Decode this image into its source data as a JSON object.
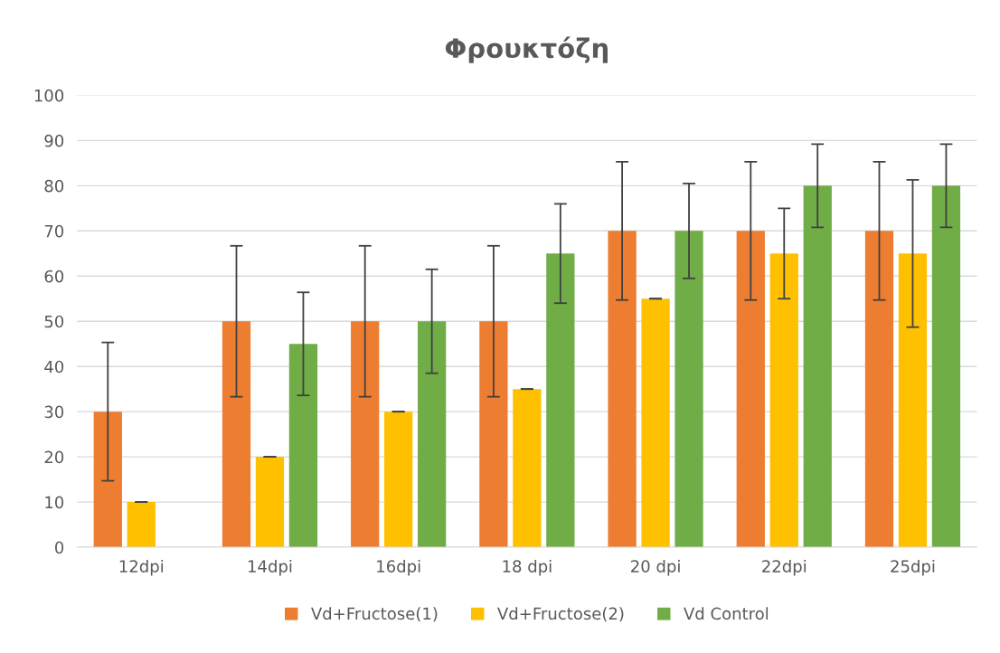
{
  "chart_data": {
    "type": "bar",
    "title": "Φρουκτόζη",
    "categories": [
      "12dpi",
      "14dpi",
      "16dpi",
      "18 dpi",
      "20 dpi",
      "22dpi",
      "25dpi"
    ],
    "series": [
      {
        "name": "Vd+Fructose(1)",
        "color": "#ed7d31",
        "values": [
          30,
          50,
          50,
          50,
          70,
          70,
          70
        ],
        "errors": [
          15.3,
          16.7,
          16.7,
          16.7,
          15.3,
          15.3,
          15.3
        ]
      },
      {
        "name": "Vd+Fructose(2)",
        "color": "#ffc000",
        "values": [
          10,
          20,
          30,
          35,
          55,
          65,
          65
        ],
        "errors": [
          0,
          0,
          0,
          0,
          0,
          10,
          16.3
        ]
      },
      {
        "name": "Vd Control",
        "color": "#70ad47",
        "values": [
          null,
          45,
          50,
          65,
          70,
          80,
          80
        ],
        "errors": [
          null,
          11.4,
          11.5,
          11,
          10.5,
          9.2,
          9.2
        ]
      }
    ],
    "ylim": [
      0,
      100
    ],
    "yticks": [
      0,
      10,
      20,
      30,
      40,
      50,
      60,
      70,
      80,
      90,
      100
    ],
    "grid": "y",
    "legend": "bottom"
  }
}
